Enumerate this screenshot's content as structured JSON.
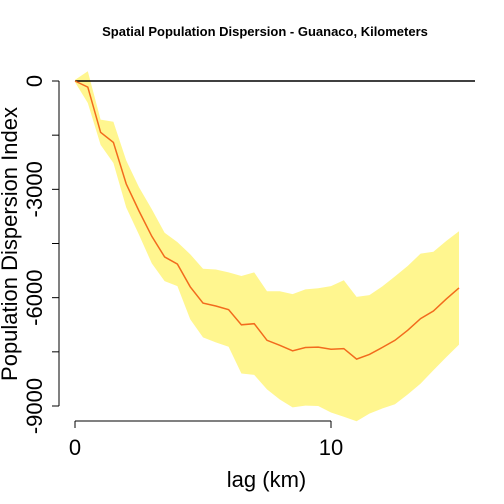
{
  "chart_data": {
    "type": "area",
    "title": "Spatial Population Dispersion - Guanaco, Kilometers",
    "xlabel": "lag (km)",
    "ylabel": "Population Dispersion Index",
    "xlim": [
      0,
      15
    ],
    "ylim": [
      -9000,
      0
    ],
    "xticks": [
      0,
      10
    ],
    "yticks": [
      0,
      -3000,
      -6000,
      -9000
    ],
    "minor_yticks": [
      -1500,
      -4500,
      -7500
    ],
    "reference_line": 0,
    "colors": {
      "band": "#fff68f",
      "line": "#f26b1d",
      "reference": "#000000"
    },
    "x": [
      0,
      0.5,
      1,
      1.5,
      2,
      2.5,
      3,
      3.5,
      4,
      4.5,
      5,
      5.5,
      6,
      6.5,
      7,
      7.5,
      8,
      8.5,
      9,
      9.5,
      10,
      10.5,
      11,
      11.5,
      12,
      12.5,
      13,
      13.5,
      14,
      14.5,
      15
    ],
    "series": [
      {
        "values": [
          0,
          -170,
          -1420,
          -1700,
          -2850,
          -3600,
          -4300,
          -4870,
          -5070,
          -5700,
          -6150,
          -6230,
          -6330,
          -6750,
          -6720,
          -7180,
          -7320,
          -7470,
          -7380,
          -7370,
          -7430,
          -7410,
          -7700,
          -7570,
          -7380,
          -7180,
          -6900,
          -6580,
          -6370,
          -6040,
          -5730
        ]
      }
    ],
    "band": {
      "upper": [
        30,
        270,
        -1070,
        -1130,
        -2200,
        -2940,
        -3550,
        -4200,
        -4460,
        -4800,
        -5200,
        -5220,
        -5300,
        -5400,
        -5300,
        -5820,
        -5820,
        -5900,
        -5770,
        -5740,
        -5680,
        -5520,
        -5980,
        -5930,
        -5690,
        -5410,
        -5120,
        -4780,
        -4730,
        -4430,
        -4160
      ]
    }
  }
}
